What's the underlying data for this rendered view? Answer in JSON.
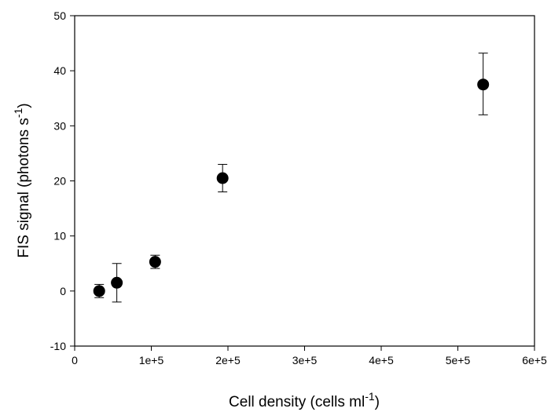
{
  "chart_data": {
    "type": "scatter",
    "title": "",
    "xlabel": {
      "text": "Cell density (cells ml",
      "sup": "-1",
      "close": ")"
    },
    "ylabel": {
      "text": "FIS signal (photons s",
      "sup": "-1",
      "close": ")"
    },
    "xlim": [
      0,
      600000
    ],
    "ylim": [
      -10,
      50
    ],
    "x_ticks": [
      {
        "value": 0,
        "label": "0"
      },
      {
        "value": 100000,
        "label": "1e+5"
      },
      {
        "value": 200000,
        "label": "2e+5"
      },
      {
        "value": 300000,
        "label": "3e+5"
      },
      {
        "value": 400000,
        "label": "4e+5"
      },
      {
        "value": 500000,
        "label": "5e+5"
      },
      {
        "value": 600000,
        "label": "6e+5"
      }
    ],
    "y_ticks": [
      {
        "value": -10,
        "label": "-10"
      },
      {
        "value": 0,
        "label": "0"
      },
      {
        "value": 10,
        "label": "10"
      },
      {
        "value": 20,
        "label": "20"
      },
      {
        "value": 30,
        "label": "30"
      },
      {
        "value": 40,
        "label": "40"
      },
      {
        "value": 50,
        "label": "50"
      }
    ],
    "grid": false,
    "legend": "none",
    "marker": "filled-circle",
    "marker_color": "#000000",
    "points": [
      {
        "x": 32000,
        "y": 0.0,
        "err_low": -1.2,
        "err_high": 1.2
      },
      {
        "x": 55000,
        "y": 1.5,
        "err_low": -2.0,
        "err_high": 5.0
      },
      {
        "x": 105000,
        "y": 5.3,
        "err_low": 4.1,
        "err_high": 6.5
      },
      {
        "x": 193000,
        "y": 20.5,
        "err_low": 18.0,
        "err_high": 23.0
      },
      {
        "x": 533000,
        "y": 37.5,
        "err_low": 32.0,
        "err_high": 43.2
      }
    ]
  }
}
